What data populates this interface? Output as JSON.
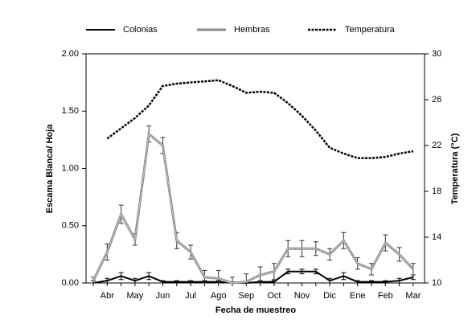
{
  "chart_data": {
    "type": "line",
    "xlabel": "Fecha de muestreo",
    "ylabel": "Escama Blanca/ Hoja",
    "y2label": "Temperatura (°C)",
    "categories": [
      null,
      "Abr",
      null,
      "May",
      null,
      "Jun",
      null,
      "Jul",
      null,
      "Ago",
      null,
      "Sep",
      null,
      "Oct",
      null,
      "Nov",
      null,
      "Dic",
      null,
      "Ene",
      null,
      "Feb",
      null,
      "Mar"
    ],
    "ylim": [
      0,
      2
    ],
    "yticks": [
      {
        "value": 0,
        "label": "0.00"
      },
      {
        "value": 0.5,
        "label": "0.50"
      },
      {
        "value": 1,
        "label": "1.00"
      },
      {
        "value": 1.5,
        "label": "1.50"
      },
      {
        "value": 2,
        "label": "2.00"
      }
    ],
    "y2lim": [
      10,
      30
    ],
    "y2ticks": [
      10,
      14,
      18,
      22,
      26,
      30
    ],
    "legend": "top",
    "series": [
      {
        "name": "Colonias",
        "color": "#000000",
        "style": "solid",
        "values": [
          0.0,
          0.02,
          0.06,
          0.02,
          0.06,
          0.01,
          0.01,
          0.01,
          0.01,
          0.01,
          0.0,
          0.0,
          0.01,
          0.01,
          0.1,
          0.1,
          0.1,
          0.02,
          0.06,
          0.01,
          0.01,
          0.01,
          0.02,
          0.05
        ],
        "errors": [
          0.02,
          0.02,
          0.03,
          0.02,
          0.03,
          0.01,
          0.01,
          0.01,
          0.01,
          0.01,
          0.01,
          0.01,
          0.01,
          0.01,
          0.02,
          0.02,
          0.02,
          0.02,
          0.03,
          0.01,
          0.01,
          0.01,
          0.02,
          0.02
        ]
      },
      {
        "name": "Hembras",
        "color": "#8c8c8c",
        "style": "double",
        "values": [
          0.02,
          0.27,
          0.6,
          0.38,
          1.3,
          1.2,
          0.37,
          0.27,
          0.05,
          0.04,
          0.0,
          0.01,
          0.07,
          0.1,
          0.3,
          0.3,
          0.3,
          0.25,
          0.37,
          0.17,
          0.12,
          0.35,
          0.25,
          0.12
        ],
        "errors": [
          0.03,
          0.07,
          0.08,
          0.05,
          0.07,
          0.07,
          0.07,
          0.06,
          0.06,
          0.07,
          0.05,
          0.07,
          0.07,
          0.07,
          0.07,
          0.07,
          0.06,
          0.05,
          0.07,
          0.05,
          0.05,
          0.07,
          0.06,
          0.05
        ]
      },
      {
        "name": "Temperatura",
        "color": "#000000",
        "style": "dashed",
        "axis": "y2",
        "values": [
          null,
          22.6,
          23.5,
          24.4,
          25.5,
          27.2,
          27.4,
          27.5,
          27.6,
          27.7,
          27.2,
          26.6,
          26.7,
          26.6,
          25.7,
          24.6,
          23.3,
          21.8,
          21.3,
          20.9,
          20.9,
          21.0,
          21.3,
          21.5
        ]
      }
    ]
  }
}
